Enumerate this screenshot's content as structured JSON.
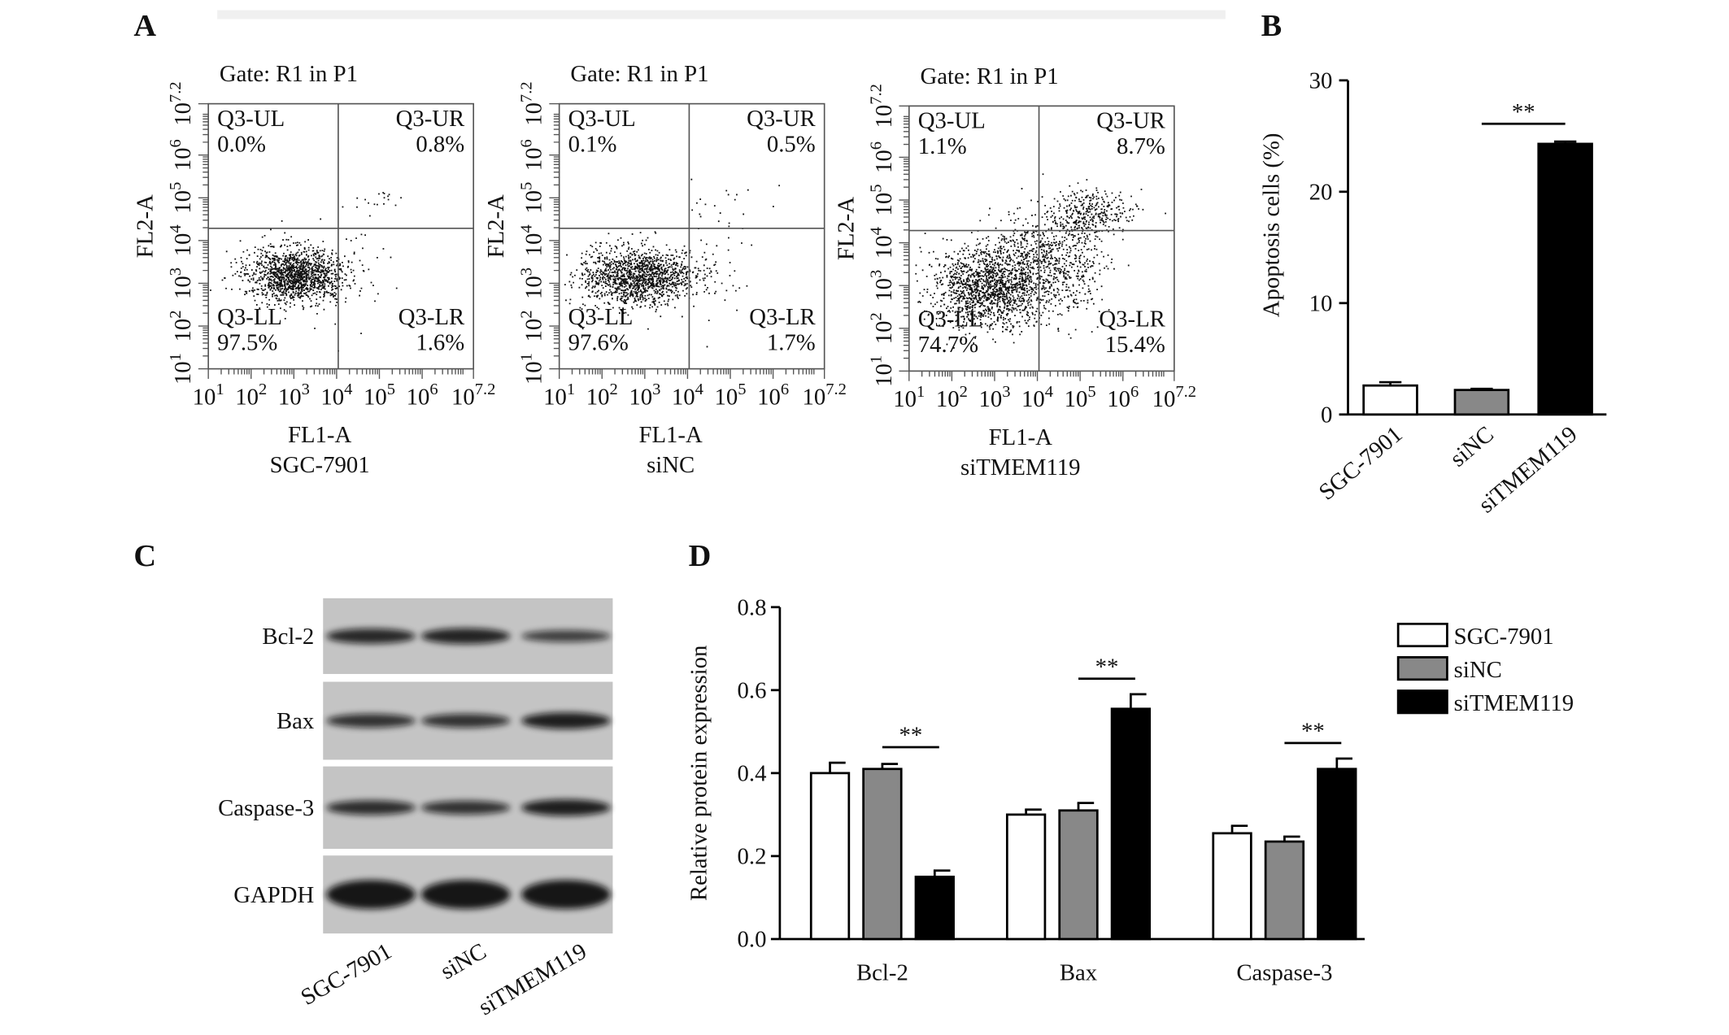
{
  "chart_data": [
    {
      "type": "flow",
      "panel": "A",
      "title": "Gate: R1 in P1",
      "xlabel": "FL1-A",
      "ylabel": "FL2-A",
      "sample": "SGC-7901",
      "log_scale": true,
      "xlim": [
        10,
        15848932
      ],
      "ylim": [
        10,
        15848932
      ],
      "xticks": [
        {
          "value": 10,
          "label": "10^1"
        },
        {
          "value": 100,
          "label": "10^2"
        },
        {
          "value": 1000,
          "label": "10^3"
        },
        {
          "value": 10000,
          "label": "10^4"
        },
        {
          "value": 100000,
          "label": "10^5"
        },
        {
          "value": 1000000,
          "label": "10^6"
        },
        {
          "value": 15848932,
          "label": "10^7.2"
        }
      ],
      "yticks": [
        {
          "value": 10,
          "label": "10^1"
        },
        {
          "value": 100,
          "label": "10^2"
        },
        {
          "value": 1000,
          "label": "10^3"
        },
        {
          "value": 10000,
          "label": "10^4"
        },
        {
          "value": 100000,
          "label": "10^5"
        },
        {
          "value": 1000000,
          "label": "10^6"
        },
        {
          "value": 15848932,
          "label": "10^7.2"
        }
      ],
      "quadrants": [
        {
          "name": "Q3-UL",
          "label": "0.0%"
        },
        {
          "name": "Q3-UR",
          "label": "0.8%"
        },
        {
          "name": "Q3-LL",
          "label": "97.5%"
        },
        {
          "name": "Q3-LR",
          "label": "1.6%"
        }
      ]
    },
    {
      "type": "flow",
      "title": "Gate: R1 in P1",
      "xlabel": "FL1-A",
      "ylabel": "FL2-A",
      "sample": "siNC",
      "log_scale": true,
      "xlim": [
        10,
        15848932
      ],
      "ylim": [
        10,
        15848932
      ],
      "xticks": [
        {
          "value": 10,
          "label": "10^1"
        },
        {
          "value": 100,
          "label": "10^2"
        },
        {
          "value": 1000,
          "label": "10^3"
        },
        {
          "value": 10000,
          "label": "10^4"
        },
        {
          "value": 100000,
          "label": "10^5"
        },
        {
          "value": 1000000,
          "label": "10^6"
        },
        {
          "value": 15848932,
          "label": "10^7.2"
        }
      ],
      "yticks": [
        {
          "value": 10,
          "label": "10^1"
        },
        {
          "value": 100,
          "label": "10^2"
        },
        {
          "value": 1000,
          "label": "10^3"
        },
        {
          "value": 10000,
          "label": "10^4"
        },
        {
          "value": 100000,
          "label": "10^5"
        },
        {
          "value": 1000000,
          "label": "10^6"
        },
        {
          "value": 15848932,
          "label": "10^7.2"
        }
      ],
      "quadrants": [
        {
          "name": "Q3-UL",
          "label": "0.1%"
        },
        {
          "name": "Q3-UR",
          "label": "0.5%"
        },
        {
          "name": "Q3-LL",
          "label": "97.6%"
        },
        {
          "name": "Q3-LR",
          "label": "1.7%"
        }
      ]
    },
    {
      "type": "flow",
      "title": "Gate: R1 in P1",
      "xlabel": "FL1-A",
      "ylabel": "FL2-A",
      "sample": "siTMEM119",
      "log_scale": true,
      "xlim": [
        10,
        15848932
      ],
      "ylim": [
        10,
        15848932
      ],
      "xticks": [
        {
          "value": 10,
          "label": "10^1"
        },
        {
          "value": 100,
          "label": "10^2"
        },
        {
          "value": 1000,
          "label": "10^3"
        },
        {
          "value": 10000,
          "label": "10^4"
        },
        {
          "value": 100000,
          "label": "10^5"
        },
        {
          "value": 1000000,
          "label": "10^6"
        },
        {
          "value": 15848932,
          "label": "10^7.2"
        }
      ],
      "yticks": [
        {
          "value": 10,
          "label": "10^1"
        },
        {
          "value": 100,
          "label": "10^2"
        },
        {
          "value": 1000,
          "label": "10^3"
        },
        {
          "value": 10000,
          "label": "10^4"
        },
        {
          "value": 100000,
          "label": "10^5"
        },
        {
          "value": 1000000,
          "label": "10^6"
        },
        {
          "value": 15848932,
          "label": "10^7.2"
        }
      ],
      "quadrants": [
        {
          "name": "Q3-UL",
          "label": "1.1%"
        },
        {
          "name": "Q3-UR",
          "label": "8.7%"
        },
        {
          "name": "Q3-LL",
          "label": "74.7%"
        },
        {
          "name": "Q3-LR",
          "label": "15.4%"
        }
      ]
    },
    {
      "type": "bar",
      "panel": "B",
      "ylabel": "Apoptosis cells (%)",
      "categories": [
        "SGC-7901",
        "siNC",
        "siTMEM119"
      ],
      "values": [
        2.6,
        2.2,
        24.3
      ],
      "errors": [
        0.3,
        0.1,
        0.2
      ],
      "colors": [
        "#ffffff",
        "#888888",
        "#000000"
      ],
      "ylim": [
        0,
        30
      ],
      "yticks": [
        0,
        10,
        20,
        30
      ],
      "significance": "**"
    },
    {
      "type": "blot",
      "panel": "C",
      "rows": [
        "Bcl-2",
        "Bax",
        "Caspase-3",
        "GAPDH"
      ],
      "lanes": [
        "SGC-7901",
        "siNC",
        "siTMEM119"
      ]
    },
    {
      "type": "grouped_bar",
      "panel": "D",
      "ylabel": "Relative protein expression",
      "categories": [
        "Bcl-2",
        "Bax",
        "Caspase-3"
      ],
      "series": [
        {
          "name": "SGC-7901",
          "color": "#ffffff",
          "values": [
            0.4,
            0.3,
            0.255
          ],
          "errors": [
            0.025,
            0.012,
            0.018
          ]
        },
        {
          "name": "siNC",
          "color": "#888888",
          "values": [
            0.41,
            0.31,
            0.235
          ],
          "errors": [
            0.012,
            0.018,
            0.012
          ]
        },
        {
          "name": "siTMEM119",
          "color": "#000000",
          "values": [
            0.15,
            0.555,
            0.41
          ],
          "errors": [
            0.015,
            0.035,
            0.025
          ]
        }
      ],
      "ylim": [
        0,
        0.8
      ],
      "yticks": [
        {
          "value": 0,
          "label": "0.0"
        },
        0.2,
        0.4,
        0.6,
        0.8
      ],
      "significance": "**",
      "legend": "upper right"
    }
  ]
}
